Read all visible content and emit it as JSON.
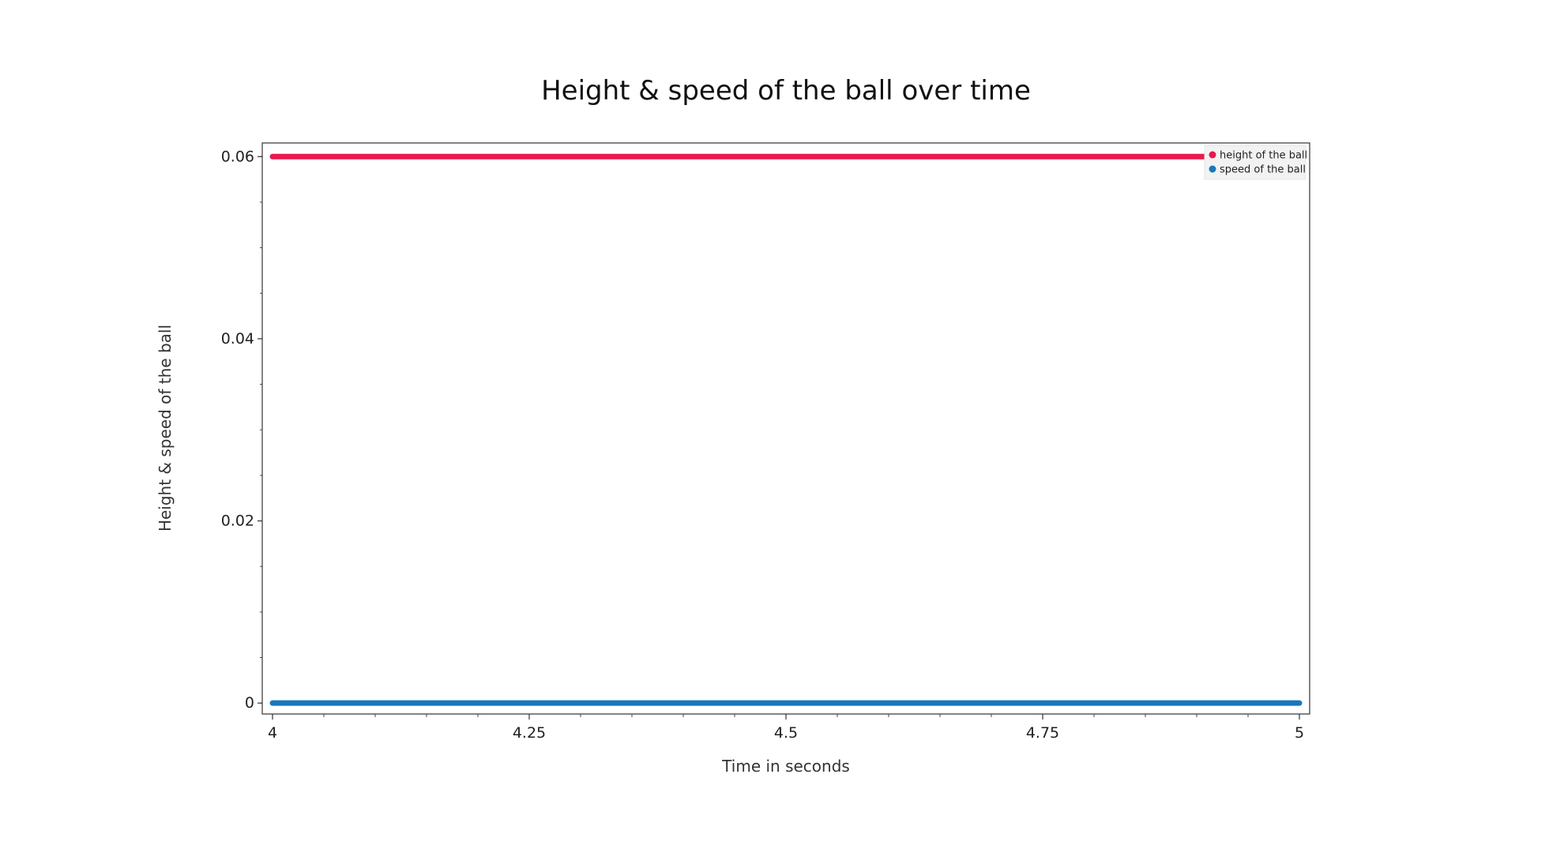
{
  "chart_data": {
    "type": "line",
    "title": "Height & speed of the ball over time",
    "xlabel": "Time in seconds",
    "ylabel": "Height & speed of the ball",
    "xlim": [
      3.99,
      5.01
    ],
    "ylim": [
      -0.0012,
      0.0615
    ],
    "x_ticks": [
      4,
      4.25,
      4.5,
      4.75,
      5
    ],
    "x_tick_labels": [
      "4",
      "4.25",
      "4.5",
      "4.75",
      "5"
    ],
    "y_ticks": [
      0,
      0.02,
      0.04,
      0.06
    ],
    "y_tick_labels": [
      "0",
      "0.02",
      "0.04",
      "0.06"
    ],
    "grid": false,
    "legend_position": "top-right",
    "series": [
      {
        "name": "height of the ball",
        "color": "#e8194f",
        "x": [
          4,
          5
        ],
        "y": [
          0.06,
          0.06
        ]
      },
      {
        "name": "speed of the ball",
        "color": "#1878bd",
        "x": [
          4,
          5
        ],
        "y": [
          0,
          0
        ]
      }
    ]
  }
}
